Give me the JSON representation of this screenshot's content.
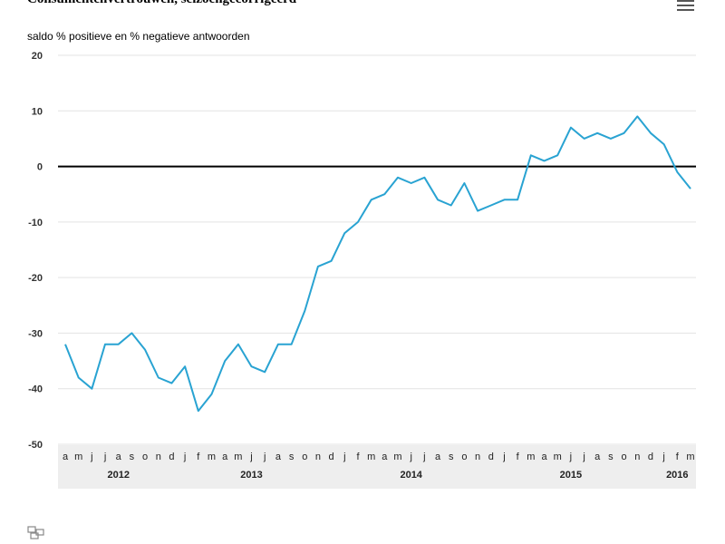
{
  "header": {
    "title": "Consumentenvertrouwen, seizoengecorrigeerd",
    "menu_icon": "hamburger-menu-icon"
  },
  "source_logo": "cbs-logo-icon",
  "chart_data": {
    "type": "line",
    "title": "Consumentenvertrouwen, seizoengecorrigeerd",
    "ylabel": "saldo % positieve en % negatieve antwoorden",
    "xlabel": "",
    "ylim": [
      -50,
      20
    ],
    "yticks": [
      20,
      10,
      0,
      -10,
      -20,
      -30,
      -40,
      -50
    ],
    "grid": true,
    "line_color": "#29a3d2",
    "month_labels": [
      "a",
      "m",
      "j",
      "j",
      "a",
      "s",
      "o",
      "n",
      "d",
      "j",
      "f",
      "m",
      "a",
      "m",
      "j",
      "j",
      "a",
      "s",
      "o",
      "n",
      "d",
      "j",
      "f",
      "m",
      "a",
      "m",
      "j",
      "j",
      "a",
      "s",
      "o",
      "n",
      "d",
      "j",
      "f",
      "m",
      "a",
      "m",
      "j",
      "j",
      "a",
      "s",
      "o",
      "n",
      "d",
      "j",
      "f",
      "m"
    ],
    "year_labels": [
      {
        "label": "2012",
        "month_index": 4
      },
      {
        "label": "2013",
        "month_index": 14
      },
      {
        "label": "2014",
        "month_index": 26
      },
      {
        "label": "2015",
        "month_index": 38
      },
      {
        "label": "2016",
        "month_index": 46
      }
    ],
    "series": [
      {
        "values": [
          -32,
          -38,
          -40,
          -32,
          -32,
          -30,
          -33,
          -38,
          -39,
          -36,
          -44,
          -41,
          -35,
          -32,
          -36,
          -37,
          -32,
          -32,
          -26,
          -18,
          -17,
          -12,
          -10,
          -6,
          -5,
          -2,
          -3,
          -2,
          -6,
          -7,
          -3,
          -8,
          -7,
          -6,
          -6,
          2,
          1,
          2,
          7,
          5,
          6,
          5,
          6,
          9,
          6,
          4,
          -1,
          -4
        ]
      }
    ]
  }
}
